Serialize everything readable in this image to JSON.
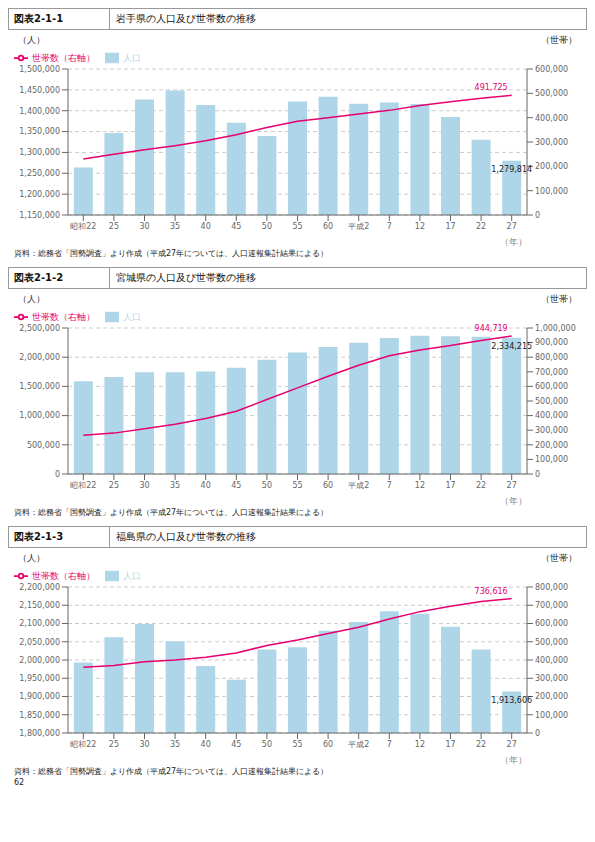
{
  "chart_data": [
    {
      "type": "bar",
      "title": "岩手県の人口及び世帯数の推移",
      "subtitle": "図表2-1-1",
      "xlabel": "（年）",
      "ylabel": "（人）",
      "y2label": "（世帯）",
      "categories": [
        "昭和22",
        "25",
        "30",
        "35",
        "40",
        "45",
        "50",
        "55",
        "60",
        "平成2",
        "7",
        "12",
        "17",
        "22",
        "27"
      ],
      "series": [
        {
          "name": "人口",
          "type": "bar",
          "color": "#aed6e8",
          "values": [
            1264006,
            1346728,
            1426606,
            1448535,
            1413467,
            1371383,
            1339476,
            1421927,
            1433611,
            1416928,
            1419505,
            1416180,
            1385041,
            1330147,
            1279814
          ]
        },
        {
          "name": "世帯数（右軸）",
          "type": "line",
          "color": "#e8006e",
          "axis": "y2",
          "values": [
            230000,
            250000,
            268000,
            285000,
            305000,
            330000,
            360000,
            385000,
            400000,
            415000,
            430000,
            450000,
            465000,
            480000,
            491725
          ]
        }
      ],
      "ylim": [
        1150000,
        1500000
      ],
      "yticks": [
        {
          "value": 1150000,
          "label": "1,150,000"
        },
        {
          "value": 1200000,
          "label": "1,200,000"
        },
        {
          "value": 1250000,
          "label": "1,250,000"
        },
        {
          "value": 1300000,
          "label": "1,300,000"
        },
        {
          "value": 1350000,
          "label": "1,350,000"
        },
        {
          "value": 1400000,
          "label": "1,400,000"
        },
        {
          "value": 1450000,
          "label": "1,450,000"
        },
        {
          "value": 1500000,
          "label": "1,500,000"
        }
      ],
      "y2lim": [
        0,
        600000
      ],
      "y2ticks": [
        0,
        {
          "value": 100000,
          "label": "100,000"
        },
        {
          "value": 200000,
          "label": "200,000"
        },
        {
          "value": 300000,
          "label": "300,000"
        },
        {
          "value": 400000,
          "label": "400,000"
        },
        {
          "value": 500000,
          "label": "500,000"
        },
        {
          "value": 600000,
          "label": "600,000"
        }
      ],
      "grid": true,
      "legend": "upper left",
      "annotations": [
        {
          "text": "1,279,814",
          "series": "人口",
          "category": "27"
        },
        {
          "text": "491,725",
          "series": "世帯数（右軸）",
          "category": "27"
        },
        {
          "text": "資料：総務省「国勢調査」より作成（平成27年については、人口速報集計結果による）"
        }
      ]
    },
    {
      "type": "bar",
      "title": "宮城県の人口及び世帯数の推移",
      "subtitle": "図表2-1-2",
      "xlabel": "（年）",
      "ylabel": "（人）",
      "y2label": "（世帯）",
      "categories": [
        "昭和22",
        "25",
        "30",
        "35",
        "40",
        "45",
        "50",
        "55",
        "60",
        "平成2",
        "7",
        "12",
        "17",
        "22",
        "27"
      ],
      "series": [
        {
          "name": "人口",
          "type": "bar",
          "color": "#aed6e8",
          "values": [
            1586375,
            1661771,
            1743195,
            1743195,
            1753126,
            1819223,
            1955476,
            2082320,
            2176295,
            2248558,
            2328739,
            2365320,
            2360218,
            2348165,
            2334215
          ]
        },
        {
          "name": "世帯数（右軸）",
          "type": "line",
          "color": "#e8006e",
          "axis": "y2",
          "values": [
            265000,
            280000,
            310000,
            340000,
            380000,
            430000,
            510000,
            590000,
            670000,
            745000,
            810000,
            850000,
            880000,
            915000,
            944719
          ]
        }
      ],
      "ylim": [
        0,
        2500000
      ],
      "yticks": [
        0,
        {
          "value": 500000,
          "label": "500,000"
        },
        {
          "value": 1000000,
          "label": "1,000,000"
        },
        {
          "value": 1500000,
          "label": "1,500,000"
        },
        {
          "value": 2000000,
          "label": "2,000,000"
        },
        {
          "value": 2500000,
          "label": "2,500,000"
        }
      ],
      "y2lim": [
        0,
        1000000
      ],
      "y2ticks": [
        0,
        {
          "value": 100000,
          "label": "100,000"
        },
        {
          "value": 200000,
          "label": "200,000"
        },
        {
          "value": 300000,
          "label": "300,000"
        },
        {
          "value": 400000,
          "label": "400,000"
        },
        {
          "value": 500000,
          "label": "500,000"
        },
        {
          "value": 600000,
          "label": "600,000"
        },
        {
          "value": 700000,
          "label": "700,000"
        },
        {
          "value": 800000,
          "label": "800,000"
        },
        {
          "value": 900000,
          "label": "900,000"
        },
        {
          "value": 1000000,
          "label": "1,000,000"
        }
      ],
      "grid": true,
      "legend": "upper left",
      "annotations": [
        {
          "text": "2,334,215",
          "series": "人口",
          "category": "27"
        },
        {
          "text": "944,719",
          "series": "世帯数（右軸）",
          "category": "27"
        },
        {
          "text": "資料：総務省「国勢調査」より作成（平成27年については、人口速報集計結果による）"
        }
      ]
    },
    {
      "type": "bar",
      "title": "福島県の人口及び世帯数の推移",
      "subtitle": "図表2-1-3",
      "xlabel": "（年）",
      "ylabel": "（人）",
      "y2label": "（世帯）",
      "categories": [
        "昭和22",
        "25",
        "30",
        "35",
        "40",
        "45",
        "50",
        "55",
        "60",
        "平成2",
        "7",
        "12",
        "17",
        "22",
        "27"
      ],
      "series": [
        {
          "name": "人口",
          "type": "bar",
          "color": "#aed6e8",
          "values": [
            1993254,
            2062394,
            2098419,
            2051140,
            1983754,
            1946077,
            2028536,
            2035272,
            2080302,
            2104058,
            2133592,
            2126935,
            2091319,
            2029064,
            1913606
          ]
        },
        {
          "name": "世帯数（右軸）",
          "type": "line",
          "color": "#e8006e",
          "axis": "y2",
          "values": [
            360000,
            370000,
            390000,
            400000,
            415000,
            438000,
            480000,
            510000,
            545000,
            580000,
            625000,
            665000,
            695000,
            720000,
            736616
          ]
        }
      ],
      "ylim": [
        1800000,
        2200000
      ],
      "yticks": [
        {
          "value": 1800000,
          "label": "1,800,000"
        },
        {
          "value": 1850000,
          "label": "1,850,000"
        },
        {
          "value": 1900000,
          "label": "1,900,000"
        },
        {
          "value": 1950000,
          "label": "1,950,000"
        },
        {
          "value": 2000000,
          "label": "2,000,000"
        },
        {
          "value": 2050000,
          "label": "2,050,000"
        },
        {
          "value": 2100000,
          "label": "2,100,000"
        },
        {
          "value": 2150000,
          "label": "2,150,000"
        },
        {
          "value": 2200000,
          "label": "2,200,000"
        }
      ],
      "y2lim": [
        0,
        800000
      ],
      "y2ticks": [
        0,
        {
          "value": 100000,
          "label": "100,000"
        },
        {
          "value": 200000,
          "label": "200,000"
        },
        {
          "value": 300000,
          "label": "300,000"
        },
        {
          "value": 400000,
          "label": "400,000"
        },
        {
          "value": 500000,
          "label": "500,000"
        },
        {
          "value": 600000,
          "label": "600,000"
        },
        {
          "value": 700000,
          "label": "700,000"
        },
        {
          "value": 800000,
          "label": "800,000"
        }
      ],
      "grid": true,
      "legend": "upper left",
      "annotations": [
        {
          "text": "1,913,606",
          "series": "人口",
          "category": "27"
        },
        {
          "text": "736,616",
          "series": "世帯数（右軸）",
          "category": "27"
        },
        {
          "text": "資料：総務省「国勢調査」より作成（平成27年については、人口速報集計結果による）"
        },
        {
          "text": "62"
        }
      ]
    }
  ]
}
